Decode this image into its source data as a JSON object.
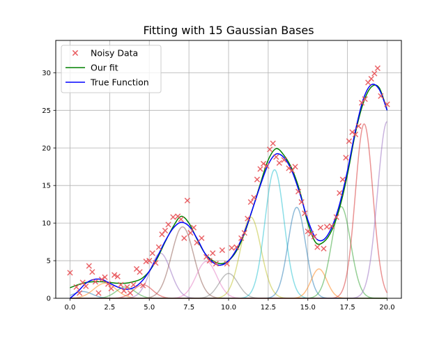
{
  "chart_data": {
    "type": "line",
    "title": "Fitting with 15 Gaussian Bases",
    "xlabel": "",
    "ylabel": "",
    "xlim": [
      -0.9,
      20.9
    ],
    "ylim": [
      0,
      34.3
    ],
    "grid": true,
    "legend_position": "top-left",
    "x_ticks": [
      0,
      2.5,
      5,
      7.5,
      10,
      12.5,
      15,
      17.5,
      20
    ],
    "x_tick_labels": [
      "0.0",
      "2.5",
      "5.0",
      "7.5",
      "10.0",
      "12.5",
      "15.0",
      "17.5",
      "20.0"
    ],
    "y_ticks": [
      0,
      5,
      10,
      15,
      20,
      25,
      30
    ],
    "y_tick_labels": [
      "0",
      "5",
      "10",
      "15",
      "20",
      "25",
      "30"
    ],
    "legend": [
      {
        "label": "Noisy Data",
        "marker": "x",
        "color": "#e8575b"
      },
      {
        "label": "Our fit",
        "marker": "line",
        "color": "#008000"
      },
      {
        "label": "True Function",
        "marker": "line",
        "color": "#0000ff"
      }
    ],
    "noisy_data": {
      "color": "#e8575b",
      "points": [
        [
          0.0,
          3.4
        ],
        [
          0.4,
          1.5
        ],
        [
          0.6,
          0.7
        ],
        [
          0.8,
          2.1
        ],
        [
          1.0,
          1.6
        ],
        [
          1.2,
          4.3
        ],
        [
          1.4,
          3.5
        ],
        [
          1.6,
          2.2
        ],
        [
          1.8,
          0.7
        ],
        [
          2.0,
          2.5
        ],
        [
          2.2,
          2.8
        ],
        [
          2.4,
          1.9
        ],
        [
          2.6,
          1.3
        ],
        [
          2.8,
          3.1
        ],
        [
          3.0,
          2.9
        ],
        [
          3.2,
          1.8
        ],
        [
          3.4,
          1.0
        ],
        [
          3.6,
          1.5
        ],
        [
          3.8,
          0.7
        ],
        [
          4.0,
          1.8
        ],
        [
          4.2,
          3.9
        ],
        [
          4.4,
          3.5
        ],
        [
          4.6,
          1.7
        ],
        [
          4.8,
          4.9
        ],
        [
          5.0,
          5.0
        ],
        [
          5.2,
          6.0
        ],
        [
          5.4,
          4.7
        ],
        [
          5.6,
          6.8
        ],
        [
          5.8,
          8.5
        ],
        [
          6.0,
          9.0
        ],
        [
          6.2,
          9.8
        ],
        [
          6.5,
          10.8
        ],
        [
          6.8,
          10.9
        ],
        [
          7.0,
          10.5
        ],
        [
          7.2,
          8.0
        ],
        [
          7.4,
          13.0
        ],
        [
          7.6,
          8.7
        ],
        [
          7.8,
          9.4
        ],
        [
          8.0,
          7.4
        ],
        [
          8.3,
          8.0
        ],
        [
          8.6,
          5.5
        ],
        [
          8.8,
          5.0
        ],
        [
          9.0,
          6.0
        ],
        [
          9.2,
          4.6
        ],
        [
          9.6,
          6.4
        ],
        [
          9.9,
          4.6
        ],
        [
          10.2,
          6.7
        ],
        [
          10.5,
          6.8
        ],
        [
          10.8,
          8.0
        ],
        [
          11.0,
          8.7
        ],
        [
          11.2,
          10.6
        ],
        [
          11.4,
          12.8
        ],
        [
          11.6,
          13.4
        ],
        [
          11.8,
          15.8
        ],
        [
          12.0,
          17.2
        ],
        [
          12.2,
          17.9
        ],
        [
          12.4,
          17.6
        ],
        [
          12.6,
          19.8
        ],
        [
          12.8,
          20.6
        ],
        [
          13.0,
          18.8
        ],
        [
          13.2,
          18.0
        ],
        [
          13.5,
          18.4
        ],
        [
          13.8,
          17.3
        ],
        [
          14.0,
          17.0
        ],
        [
          14.2,
          17.5
        ],
        [
          14.4,
          14.2
        ],
        [
          14.6,
          12.8
        ],
        [
          14.8,
          11.3
        ],
        [
          15.0,
          8.9
        ],
        [
          15.2,
          8.6
        ],
        [
          15.4,
          8.2
        ],
        [
          15.6,
          6.8
        ],
        [
          15.8,
          9.4
        ],
        [
          16.0,
          6.6
        ],
        [
          16.2,
          9.5
        ],
        [
          16.5,
          9.6
        ],
        [
          16.8,
          10.8
        ],
        [
          17.0,
          14.0
        ],
        [
          17.2,
          15.8
        ],
        [
          17.4,
          18.7
        ],
        [
          17.6,
          20.9
        ],
        [
          17.8,
          22.1
        ],
        [
          18.0,
          21.8
        ],
        [
          18.2,
          22.9
        ],
        [
          18.4,
          26.0
        ],
        [
          18.6,
          26.5
        ],
        [
          18.8,
          28.7
        ],
        [
          19.0,
          29.2
        ],
        [
          19.2,
          29.9
        ],
        [
          19.4,
          30.6
        ],
        [
          19.6,
          26.9
        ],
        [
          20.0,
          25.8
        ]
      ]
    },
    "series": [
      {
        "name": "Our fit",
        "color": "#008000",
        "width": 1.5,
        "x": [
          0,
          0.5,
          1,
          1.5,
          2,
          2.5,
          3,
          3.5,
          4,
          4.5,
          5,
          5.5,
          6,
          6.5,
          7,
          7.5,
          8,
          8.5,
          9,
          9.5,
          10,
          10.5,
          11,
          11.5,
          12,
          12.5,
          13,
          13.5,
          14,
          14.5,
          15,
          15.5,
          16,
          16.5,
          17,
          17.5,
          18,
          18.5,
          19,
          19.5,
          20
        ],
        "y": [
          1.4,
          1.8,
          2.1,
          2.2,
          2.2,
          2.1,
          2.0,
          2.0,
          2.2,
          2.6,
          3.6,
          5.3,
          7.5,
          9.5,
          10.9,
          10.0,
          7.9,
          6.0,
          5.0,
          4.6,
          5.0,
          6.3,
          8.6,
          11.8,
          15.2,
          18.4,
          19.9,
          19.0,
          17.2,
          14.2,
          10.0,
          7.4,
          7.5,
          9.0,
          12.0,
          16.5,
          22.0,
          26.0,
          28.1,
          28.0,
          25.0
        ]
      },
      {
        "name": "True Function",
        "color": "#0000ff",
        "width": 1.5,
        "x": [
          0,
          0.5,
          1,
          1.5,
          2,
          2.5,
          3,
          3.5,
          4,
          4.5,
          5,
          5.5,
          6,
          6.5,
          7,
          7.5,
          8,
          8.5,
          9,
          9.5,
          10,
          10.5,
          11,
          11.5,
          12,
          12.5,
          13,
          13.5,
          14,
          14.5,
          15,
          15.5,
          16,
          16.5,
          17,
          17.5,
          18,
          18.5,
          19,
          19.5,
          20
        ],
        "y": [
          0.0,
          0.9,
          2.0,
          2.5,
          2.5,
          2.0,
          1.5,
          1.2,
          1.4,
          2.2,
          3.6,
          5.5,
          7.6,
          9.3,
          10.1,
          9.6,
          8.0,
          6.0,
          4.8,
          4.4,
          5.0,
          6.5,
          8.8,
          11.8,
          15.0,
          17.8,
          19.2,
          18.7,
          16.9,
          13.9,
          10.4,
          8.0,
          7.8,
          9.4,
          12.5,
          17.0,
          22.3,
          26.5,
          28.4,
          27.8,
          25.0
        ]
      }
    ],
    "basis_functions": {
      "note": "",
      "items": [
        {
          "center": 0.8,
          "amplitude": 0.9,
          "width": 0.6,
          "color": "#1f77b4"
        },
        {
          "center": 2.2,
          "amplitude": 2.0,
          "width": 0.7,
          "color": "#ff7f0e"
        },
        {
          "center": 3.5,
          "amplitude": 1.5,
          "width": 0.6,
          "color": "#2ca02c"
        },
        {
          "center": 4.6,
          "amplitude": 1.8,
          "width": 0.6,
          "color": "#d62728"
        },
        {
          "center": 5.7,
          "amplitude": 6.0,
          "width": 0.65,
          "color": "#9467bd"
        },
        {
          "center": 7.1,
          "amplitude": 9.5,
          "width": 0.7,
          "color": "#8c564b"
        },
        {
          "center": 8.6,
          "amplitude": 4.9,
          "width": 0.65,
          "color": "#e377c2"
        },
        {
          "center": 10.0,
          "amplitude": 3.3,
          "width": 0.6,
          "color": "#7f7f7f"
        },
        {
          "center": 11.4,
          "amplitude": 10.8,
          "width": 0.65,
          "color": "#bcbd22"
        },
        {
          "center": 12.9,
          "amplitude": 17.1,
          "width": 0.6,
          "color": "#17becf"
        },
        {
          "center": 14.3,
          "amplitude": 12.1,
          "width": 0.55,
          "color": "#1f77b4"
        },
        {
          "center": 15.7,
          "amplitude": 3.9,
          "width": 0.5,
          "color": "#ff7f0e"
        },
        {
          "center": 17.1,
          "amplitude": 12.2,
          "width": 0.6,
          "color": "#2ca02c"
        },
        {
          "center": 18.55,
          "amplitude": 23.2,
          "width": 0.55,
          "color": "#d62728"
        },
        {
          "center": 20.0,
          "amplitude": 23.5,
          "width": 0.6,
          "color": "#9467bd"
        }
      ]
    }
  }
}
